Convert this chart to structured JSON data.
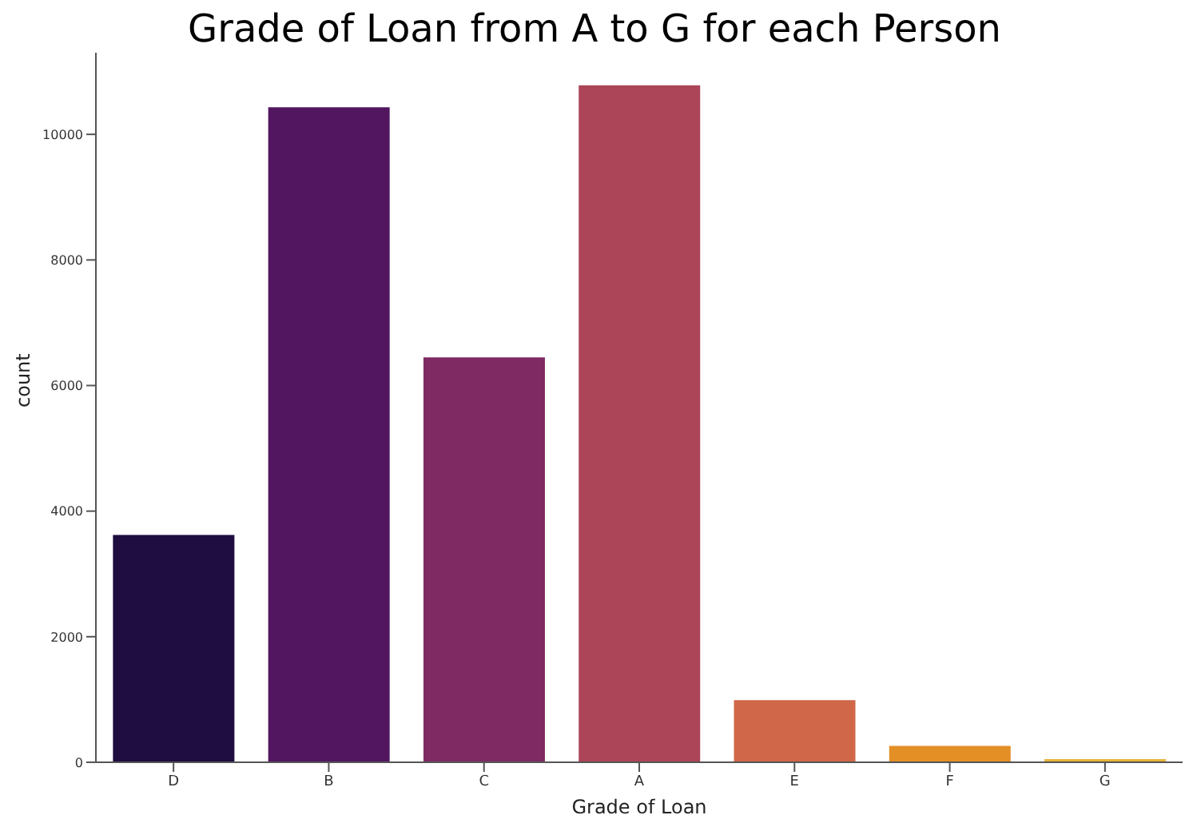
{
  "chart_data": {
    "type": "bar",
    "title": "Grade of Loan from A to G for each Person",
    "xlabel": "Grade of Loan",
    "ylabel": "count",
    "categories": [
      "D",
      "B",
      "C",
      "A",
      "E",
      "F",
      "G"
    ],
    "values": [
      3620,
      10430,
      6450,
      10780,
      990,
      260,
      50
    ],
    "colors": [
      "#1f0c40",
      "#521660",
      "#7f2a63",
      "#ad4558",
      "#cf6748",
      "#e38f26",
      "#e6b53a"
    ],
    "ylim": [
      0,
      11300
    ],
    "yticks": [
      0,
      2000,
      4000,
      6000,
      8000,
      10000
    ],
    "grid": false,
    "legend": false
  }
}
